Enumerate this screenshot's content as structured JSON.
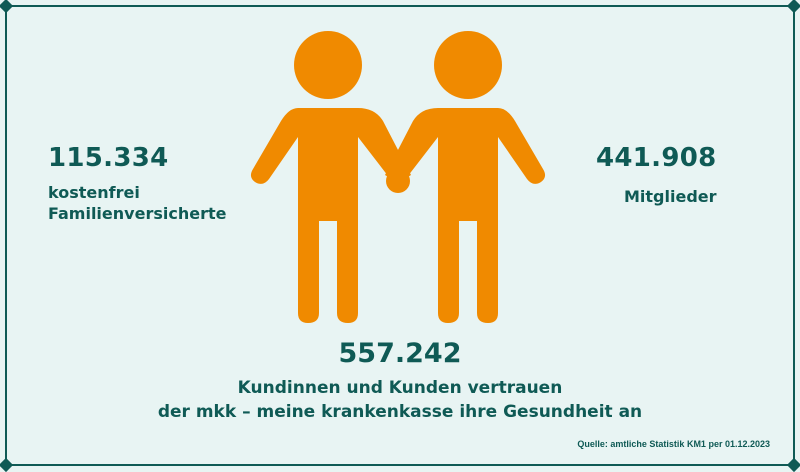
{
  "left_stat": {
    "value": "115.334",
    "label_line1": "kostenfrei",
    "label_line2": "Familienversicherte"
  },
  "right_stat": {
    "value": "441.908",
    "label": "Mitglieder"
  },
  "total": {
    "value": "557.242",
    "line1": "Kundinnen und Kunden vertrauen",
    "line2": "der mkk – meine krankenkasse ihre Gesundheit an"
  },
  "source": "Quelle: amtliche Statistik KM1 per 01.12.2023",
  "colors": {
    "accent": "#f08a00",
    "text": "#0f5a55",
    "background": "#e8f4f3"
  },
  "icon": "two-people-holding-hands-icon"
}
